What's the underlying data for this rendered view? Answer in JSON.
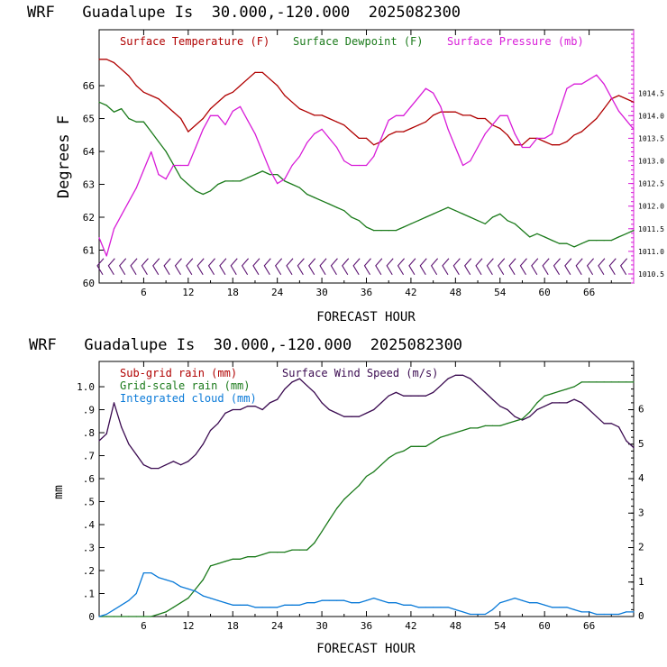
{
  "chart_data": [
    {
      "type": "line",
      "title": "WRF   Guadalupe Is  30.000,-120.000  2025082300",
      "xlabel": "FORECAST HOUR",
      "ylabel": "Degrees F",
      "xlim": [
        0,
        72
      ],
      "ylim": [
        60,
        67.7
      ],
      "y2lim": [
        1010.3,
        1015.9
      ],
      "x_ticks": [
        6,
        12,
        18,
        24,
        30,
        36,
        42,
        48,
        54,
        60,
        66
      ],
      "x_tick_labels": [
        "6",
        "12",
        "18",
        "24",
        "30",
        "36",
        "42",
        "48",
        "54",
        "60",
        "66"
      ],
      "y_ticks": [
        60,
        61,
        62,
        63,
        64,
        65,
        66
      ],
      "y_tick_labels": [
        "60",
        "61",
        "62",
        "63",
        "64",
        "65",
        "66"
      ],
      "y2_ticks": [
        1010.5,
        1011.0,
        1011.5,
        1012.0,
        1012.5,
        1013.0,
        1013.5,
        1014.0,
        1014.5
      ],
      "y2_tick_labels": [
        "1010.5",
        "1011.0",
        "1011.5",
        "1012.0",
        "1012.5",
        "1013.0",
        "1013.5",
        "1014.0",
        "1014.5"
      ],
      "wind_barb_hours": [
        0,
        1.5,
        3,
        4.5,
        6,
        7.5,
        9,
        10.5,
        12,
        13.5,
        15,
        16.5,
        18,
        19.5,
        21,
        22.5,
        24,
        25.5,
        27,
        28.5,
        30,
        31.5,
        33,
        34.5,
        36,
        37.5,
        39,
        40.5,
        42,
        43.5,
        45,
        46.5,
        48,
        49.5,
        51,
        52.5,
        54,
        55.5,
        57,
        58.5,
        60,
        61.5,
        63,
        64.5,
        66,
        67.5,
        69,
        70.5
      ],
      "series": [
        {
          "name": "Surface Temperature (F)",
          "color": "#b00000",
          "axis": "left",
          "x": [
            0,
            1,
            2,
            3,
            4,
            5,
            6,
            7,
            8,
            9,
            10,
            11,
            12,
            13,
            14,
            15,
            16,
            17,
            18,
            19,
            20,
            21,
            22,
            23,
            24,
            25,
            26,
            27,
            28,
            29,
            30,
            31,
            32,
            33,
            34,
            35,
            36,
            37,
            38,
            39,
            40,
            41,
            42,
            43,
            44,
            45,
            46,
            47,
            48,
            49,
            50,
            51,
            52,
            53,
            54,
            55,
            56,
            57,
            58,
            59,
            60,
            61,
            62,
            63,
            64,
            65,
            66,
            67,
            68,
            69,
            70,
            71,
            72
          ],
          "values": [
            66.8,
            66.8,
            66.7,
            66.5,
            66.3,
            66.0,
            65.8,
            65.7,
            65.6,
            65.4,
            65.2,
            65.0,
            64.6,
            64.8,
            65.0,
            65.3,
            65.5,
            65.7,
            65.8,
            66.0,
            66.2,
            66.4,
            66.4,
            66.2,
            66.0,
            65.7,
            65.5,
            65.3,
            65.2,
            65.1,
            65.1,
            65.0,
            64.9,
            64.8,
            64.6,
            64.4,
            64.4,
            64.2,
            64.3,
            64.5,
            64.6,
            64.6,
            64.7,
            64.8,
            64.9,
            65.1,
            65.2,
            65.2,
            65.2,
            65.1,
            65.1,
            65.0,
            65.0,
            64.8,
            64.7,
            64.5,
            64.2,
            64.2,
            64.4,
            64.4,
            64.3,
            64.2,
            64.2,
            64.3,
            64.5,
            64.6,
            64.8,
            65.0,
            65.3,
            65.6,
            65.7,
            65.6,
            65.5
          ]
        },
        {
          "name": "Surface Dewpoint (F)",
          "color": "#1a7a1a",
          "axis": "left",
          "x": [
            0,
            1,
            2,
            3,
            4,
            5,
            6,
            7,
            8,
            9,
            10,
            11,
            12,
            13,
            14,
            15,
            16,
            17,
            18,
            19,
            20,
            21,
            22,
            23,
            24,
            25,
            26,
            27,
            28,
            29,
            30,
            31,
            32,
            33,
            34,
            35,
            36,
            37,
            38,
            39,
            40,
            41,
            42,
            43,
            44,
            45,
            46,
            47,
            48,
            49,
            50,
            51,
            52,
            53,
            54,
            55,
            56,
            57,
            58,
            59,
            60,
            61,
            62,
            63,
            64,
            65,
            66,
            67,
            68,
            69,
            70,
            71,
            72
          ],
          "values": [
            65.5,
            65.4,
            65.2,
            65.3,
            65.0,
            64.9,
            64.9,
            64.6,
            64.3,
            64.0,
            63.6,
            63.2,
            63.0,
            62.8,
            62.7,
            62.8,
            63.0,
            63.1,
            63.1,
            63.1,
            63.2,
            63.3,
            63.4,
            63.3,
            63.3,
            63.1,
            63.0,
            62.9,
            62.7,
            62.6,
            62.5,
            62.4,
            62.3,
            62.2,
            62.0,
            61.9,
            61.7,
            61.6,
            61.6,
            61.6,
            61.6,
            61.7,
            61.8,
            61.9,
            62.0,
            62.1,
            62.2,
            62.3,
            62.2,
            62.1,
            62.0,
            61.9,
            61.8,
            62.0,
            62.1,
            61.9,
            61.8,
            61.6,
            61.4,
            61.5,
            61.4,
            61.3,
            61.2,
            61.2,
            61.1,
            61.2,
            61.3,
            61.3,
            61.3,
            61.3,
            61.4,
            61.5,
            61.6
          ]
        },
        {
          "name": "Surface Pressure (mb)",
          "color": "#d81cd8",
          "axis": "right",
          "x": [
            0,
            1,
            2,
            3,
            4,
            5,
            6,
            7,
            8,
            9,
            10,
            11,
            12,
            13,
            14,
            15,
            16,
            17,
            18,
            19,
            20,
            21,
            22,
            23,
            24,
            25,
            26,
            27,
            28,
            29,
            30,
            31,
            32,
            33,
            34,
            35,
            36,
            37,
            38,
            39,
            40,
            41,
            42,
            43,
            44,
            45,
            46,
            47,
            48,
            49,
            50,
            51,
            52,
            53,
            54,
            55,
            56,
            57,
            58,
            59,
            60,
            61,
            62,
            63,
            64,
            65,
            66,
            67,
            68,
            69,
            70,
            71,
            72
          ],
          "values": [
            1011.3,
            1010.9,
            1011.5,
            1011.8,
            1012.1,
            1012.4,
            1012.8,
            1013.2,
            1012.7,
            1012.6,
            1012.9,
            1012.9,
            1012.9,
            1013.3,
            1013.7,
            1014.0,
            1014.0,
            1013.8,
            1014.1,
            1014.2,
            1013.9,
            1013.6,
            1013.2,
            1012.8,
            1012.5,
            1012.6,
            1012.9,
            1013.1,
            1013.4,
            1013.6,
            1013.7,
            1013.5,
            1013.3,
            1013.0,
            1012.9,
            1012.9,
            1012.9,
            1013.1,
            1013.5,
            1013.9,
            1014.0,
            1014.0,
            1014.2,
            1014.4,
            1014.6,
            1014.5,
            1014.2,
            1013.7,
            1013.3,
            1012.9,
            1013.0,
            1013.3,
            1013.6,
            1013.8,
            1014.0,
            1014.0,
            1013.6,
            1013.3,
            1013.3,
            1013.5,
            1013.5,
            1013.6,
            1014.1,
            1014.6,
            1014.7,
            1014.7,
            1014.8,
            1014.9,
            1014.7,
            1014.4,
            1014.1,
            1013.9,
            1013.7
          ]
        }
      ]
    },
    {
      "type": "line",
      "title": "WRF   Guadalupe Is  30.000,-120.000  2025082300",
      "xlabel": "FORECAST HOUR",
      "ylabel": "mm",
      "xlim": [
        0,
        72
      ],
      "ylim": [
        0,
        1.11
      ],
      "y2lim": [
        0,
        7.4
      ],
      "x_ticks": [
        6,
        12,
        18,
        24,
        30,
        36,
        42,
        48,
        54,
        60,
        66
      ],
      "x_tick_labels": [
        "6",
        "12",
        "18",
        "24",
        "30",
        "36",
        "42",
        "48",
        "54",
        "60",
        "66"
      ],
      "y_ticks": [
        0,
        0.1,
        0.2,
        0.3,
        0.4,
        0.5,
        0.6,
        0.7,
        0.8,
        0.9,
        1.0
      ],
      "y_tick_labels": [
        "0",
        ".1",
        ".2",
        ".3",
        ".4",
        ".5",
        ".6",
        ".7",
        ".8",
        ".9",
        "1.0"
      ],
      "y2_ticks": [
        0,
        1,
        2,
        3,
        4,
        5,
        6
      ],
      "y2_tick_labels": [
        "0",
        "1",
        "2",
        "3",
        "4",
        "5",
        "6"
      ],
      "extra_legend": [
        "Sub-grid rain (mm)"
      ],
      "extra_legend_color": "#b00000",
      "series": [
        {
          "name": "Surface Wind Speed (m/s)",
          "color": "#3a0a50",
          "axis": "right",
          "x": [
            0,
            1,
            2,
            3,
            4,
            5,
            6,
            7,
            8,
            9,
            10,
            11,
            12,
            13,
            14,
            15,
            16,
            17,
            18,
            19,
            20,
            21,
            22,
            23,
            24,
            25,
            26,
            27,
            28,
            29,
            30,
            31,
            32,
            33,
            34,
            35,
            36,
            37,
            38,
            39,
            40,
            41,
            42,
            43,
            44,
            45,
            46,
            47,
            48,
            49,
            50,
            51,
            52,
            53,
            54,
            55,
            56,
            57,
            58,
            59,
            60,
            61,
            62,
            63,
            64,
            65,
            66,
            67,
            68,
            69,
            70,
            71,
            72
          ],
          "values": [
            5.1,
            5.3,
            6.2,
            5.5,
            5.0,
            4.7,
            4.4,
            4.3,
            4.3,
            4.4,
            4.5,
            4.4,
            4.5,
            4.7,
            5.0,
            5.4,
            5.6,
            5.9,
            6.0,
            6.0,
            6.1,
            6.1,
            6.0,
            6.2,
            6.3,
            6.6,
            6.8,
            6.9,
            6.7,
            6.5,
            6.2,
            6.0,
            5.9,
            5.8,
            5.8,
            5.8,
            5.9,
            6.0,
            6.2,
            6.4,
            6.5,
            6.4,
            6.4,
            6.4,
            6.4,
            6.5,
            6.7,
            6.9,
            7.0,
            7.0,
            6.9,
            6.7,
            6.5,
            6.3,
            6.1,
            6.0,
            5.8,
            5.7,
            5.8,
            6.0,
            6.1,
            6.2,
            6.2,
            6.2,
            6.3,
            6.2,
            6.0,
            5.8,
            5.6,
            5.6,
            5.5,
            5.1,
            4.9
          ]
        },
        {
          "name": "Grid-scale rain (mm)",
          "color": "#1a7a1a",
          "axis": "left",
          "x": [
            0,
            1,
            2,
            3,
            4,
            5,
            6,
            7,
            8,
            9,
            10,
            11,
            12,
            13,
            14,
            15,
            16,
            17,
            18,
            19,
            20,
            21,
            22,
            23,
            24,
            25,
            26,
            27,
            28,
            29,
            30,
            31,
            32,
            33,
            34,
            35,
            36,
            37,
            38,
            39,
            40,
            41,
            42,
            43,
            44,
            45,
            46,
            47,
            48,
            49,
            50,
            51,
            52,
            53,
            54,
            55,
            56,
            57,
            58,
            59,
            60,
            61,
            62,
            63,
            64,
            65,
            66,
            67,
            68,
            69,
            70,
            71,
            72
          ],
          "values": [
            0,
            0,
            0,
            0,
            0,
            0,
            0,
            0,
            0.01,
            0.02,
            0.04,
            0.06,
            0.08,
            0.12,
            0.16,
            0.22,
            0.23,
            0.24,
            0.25,
            0.25,
            0.26,
            0.26,
            0.27,
            0.28,
            0.28,
            0.28,
            0.29,
            0.29,
            0.29,
            0.32,
            0.37,
            0.42,
            0.47,
            0.51,
            0.54,
            0.57,
            0.61,
            0.63,
            0.66,
            0.69,
            0.71,
            0.72,
            0.74,
            0.74,
            0.74,
            0.76,
            0.78,
            0.79,
            0.8,
            0.81,
            0.82,
            0.82,
            0.83,
            0.83,
            0.83,
            0.84,
            0.85,
            0.86,
            0.89,
            0.93,
            0.96,
            0.97,
            0.98,
            0.99,
            1.0,
            1.02,
            1.02,
            1.02,
            1.02,
            1.02,
            1.02,
            1.02,
            1.02
          ]
        },
        {
          "name": "Integrated cloud (mm)",
          "color": "#0a7ad8",
          "axis": "left",
          "x": [
            0,
            1,
            2,
            3,
            4,
            5,
            6,
            7,
            8,
            9,
            10,
            11,
            12,
            13,
            14,
            15,
            16,
            17,
            18,
            19,
            20,
            21,
            22,
            23,
            24,
            25,
            26,
            27,
            28,
            29,
            30,
            31,
            32,
            33,
            34,
            35,
            36,
            37,
            38,
            39,
            40,
            41,
            42,
            43,
            44,
            45,
            46,
            47,
            48,
            49,
            50,
            51,
            52,
            53,
            54,
            55,
            56,
            57,
            58,
            59,
            60,
            61,
            62,
            63,
            64,
            65,
            66,
            67,
            68,
            69,
            70,
            71,
            72
          ],
          "values": [
            0,
            0.01,
            0.03,
            0.05,
            0.07,
            0.1,
            0.19,
            0.19,
            0.17,
            0.16,
            0.15,
            0.13,
            0.12,
            0.11,
            0.09,
            0.08,
            0.07,
            0.06,
            0.05,
            0.05,
            0.05,
            0.04,
            0.04,
            0.04,
            0.04,
            0.05,
            0.05,
            0.05,
            0.06,
            0.06,
            0.07,
            0.07,
            0.07,
            0.07,
            0.06,
            0.06,
            0.07,
            0.08,
            0.07,
            0.06,
            0.06,
            0.05,
            0.05,
            0.04,
            0.04,
            0.04,
            0.04,
            0.04,
            0.03,
            0.02,
            0.01,
            0.01,
            0.01,
            0.03,
            0.06,
            0.07,
            0.08,
            0.07,
            0.06,
            0.06,
            0.05,
            0.04,
            0.04,
            0.04,
            0.03,
            0.02,
            0.02,
            0.01,
            0.01,
            0.01,
            0.01,
            0.02,
            0.02
          ]
        }
      ]
    }
  ]
}
